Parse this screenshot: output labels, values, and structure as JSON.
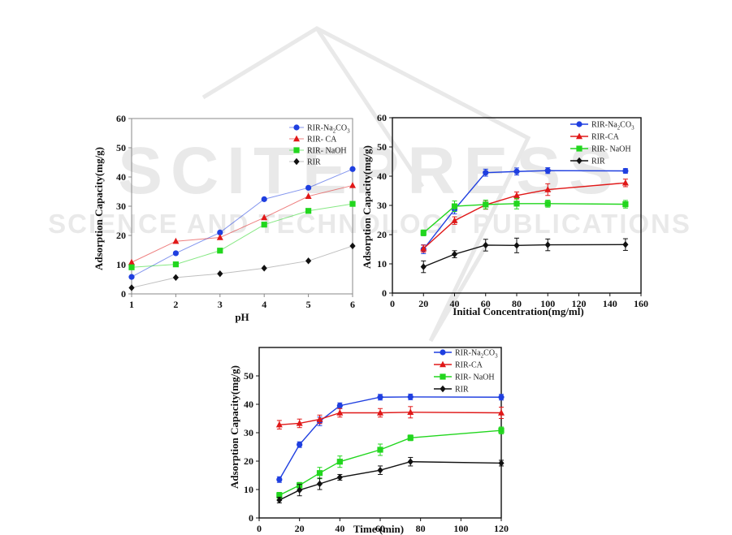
{
  "watermark": {
    "main": "SCITEPRESS",
    "sub": "SCIENCE AND TECHNOLOGY PUBLICATIONS"
  },
  "colors": {
    "na2co3": "#1f3fe0",
    "ca": "#e01818",
    "naoh": "#22d61e",
    "rir": "#111111",
    "rir_line_ph": "#8a8a8a"
  },
  "chart_data": [
    {
      "type": "line",
      "xlabel": "pH",
      "ylabel": "Adsorption Capacity(mg/g)",
      "xlim": [
        1,
        6
      ],
      "ylim": [
        0,
        60
      ],
      "xticks": [
        1,
        2,
        3,
        4,
        5,
        6
      ],
      "yticks": [
        0,
        10,
        20,
        30,
        40,
        50,
        60
      ],
      "legend_position": "top-right",
      "x": [
        1,
        2,
        3,
        4,
        5,
        6
      ],
      "series": [
        {
          "name": "RIR-Na2CO3",
          "sub_text": [
            "RIR-Na",
            "2",
            "CO",
            "3"
          ],
          "color_key": "na2co3",
          "marker": "circle",
          "values": [
            5.8,
            13.9,
            21.0,
            32.4,
            36.3,
            42.7
          ]
        },
        {
          "name": "RIR- CA",
          "color_key": "ca",
          "marker": "triangle",
          "values": [
            10.8,
            18.0,
            19.3,
            26.1,
            33.4,
            37.1
          ]
        },
        {
          "name": "RIR- NaOH",
          "color_key": "naoh",
          "marker": "square",
          "values": [
            9.1,
            10.1,
            14.8,
            23.7,
            28.4,
            30.8
          ]
        },
        {
          "name": "RIR",
          "color_key": "rir",
          "line_key": "rir_line_ph",
          "marker": "diamond",
          "values": [
            2.1,
            5.6,
            6.9,
            8.8,
            11.3,
            16.4
          ]
        }
      ]
    },
    {
      "type": "line",
      "xlabel": "Initial Concentration(mg/ml)",
      "ylabel": "Adsorption Capacity(mg/g)",
      "xlim": [
        0,
        160
      ],
      "ylim": [
        0,
        60
      ],
      "xticks": [
        0,
        20,
        40,
        60,
        80,
        100,
        120,
        140,
        160
      ],
      "yticks": [
        0,
        10,
        20,
        30,
        40,
        50,
        60
      ],
      "legend_position": "top-right",
      "x": [
        20,
        40,
        60,
        80,
        100,
        150
      ],
      "series": [
        {
          "name": "RIR-Na2CO3",
          "sub_text": [
            "RIR-Na",
            "2",
            "CO",
            "3"
          ],
          "color_key": "na2co3",
          "marker": "circle",
          "values": [
            15.0,
            28.6,
            41.2,
            41.6,
            41.9,
            41.8
          ],
          "errors": [
            1.5,
            1.5,
            1.2,
            1.2,
            1.0,
            0.8
          ]
        },
        {
          "name": "RIR-CA",
          "color_key": "ca",
          "marker": "triangle",
          "values": [
            15.2,
            24.8,
            30.2,
            33.4,
            35.4,
            37.7
          ],
          "errors": [
            1.2,
            1.3,
            1.5,
            1.2,
            2.0,
            1.3
          ]
        },
        {
          "name": "RIR- NaOH",
          "color_key": "naoh",
          "marker": "square",
          "values": [
            20.6,
            29.7,
            30.3,
            30.6,
            30.6,
            30.4
          ],
          "errors": [
            1.0,
            1.8,
            1.5,
            1.8,
            1.2,
            1.3
          ]
        },
        {
          "name": "RIR",
          "color_key": "rir",
          "marker": "diamond",
          "values": [
            9.0,
            13.3,
            16.4,
            16.3,
            16.5,
            16.6
          ],
          "errors": [
            2.0,
            1.2,
            2.0,
            2.5,
            2.0,
            2.0
          ]
        }
      ]
    },
    {
      "type": "line",
      "xlabel": "Time (min)",
      "ylabel": "Adsorption Capacity(mg/g)",
      "xlim": [
        0,
        120
      ],
      "ylim": [
        0,
        60
      ],
      "xticks": [
        0,
        20,
        40,
        60,
        80,
        100,
        120
      ],
      "yticks": [
        0,
        10,
        20,
        30,
        40,
        50
      ],
      "legend_position": "top-right",
      "x": [
        10,
        20,
        30,
        40,
        60,
        75,
        120
      ],
      "series": [
        {
          "name": "RIR-Na2CO3",
          "sub_text": [
            "RIR-Na",
            "2",
            "CO",
            "3"
          ],
          "color_key": "na2co3",
          "marker": "circle",
          "values": [
            13.5,
            25.8,
            34.0,
            39.5,
            42.5,
            42.6,
            42.5
          ],
          "errors": [
            1.0,
            1.0,
            1.5,
            1.0,
            1.0,
            1.0,
            1.0
          ]
        },
        {
          "name": "RIR-CA",
          "color_key": "ca",
          "marker": "triangle",
          "values": [
            32.8,
            33.3,
            34.7,
            37.0,
            37.0,
            37.2,
            37.0
          ],
          "errors": [
            1.5,
            1.5,
            1.5,
            1.5,
            1.5,
            2.0,
            2.0
          ]
        },
        {
          "name": "RIR- NaOH",
          "color_key": "naoh",
          "marker": "square",
          "values": [
            8.0,
            11.5,
            15.8,
            19.8,
            24.0,
            28.2,
            30.8
          ],
          "errors": [
            1.0,
            1.0,
            2.0,
            2.0,
            2.0,
            1.0,
            1.2
          ]
        },
        {
          "name": "RIR",
          "color_key": "rir",
          "marker": "diamond",
          "values": [
            6.3,
            9.8,
            12.0,
            14.3,
            16.8,
            19.8,
            19.3
          ],
          "errors": [
            1.0,
            2.0,
            2.0,
            1.0,
            1.5,
            1.5,
            1.0
          ]
        }
      ]
    }
  ]
}
